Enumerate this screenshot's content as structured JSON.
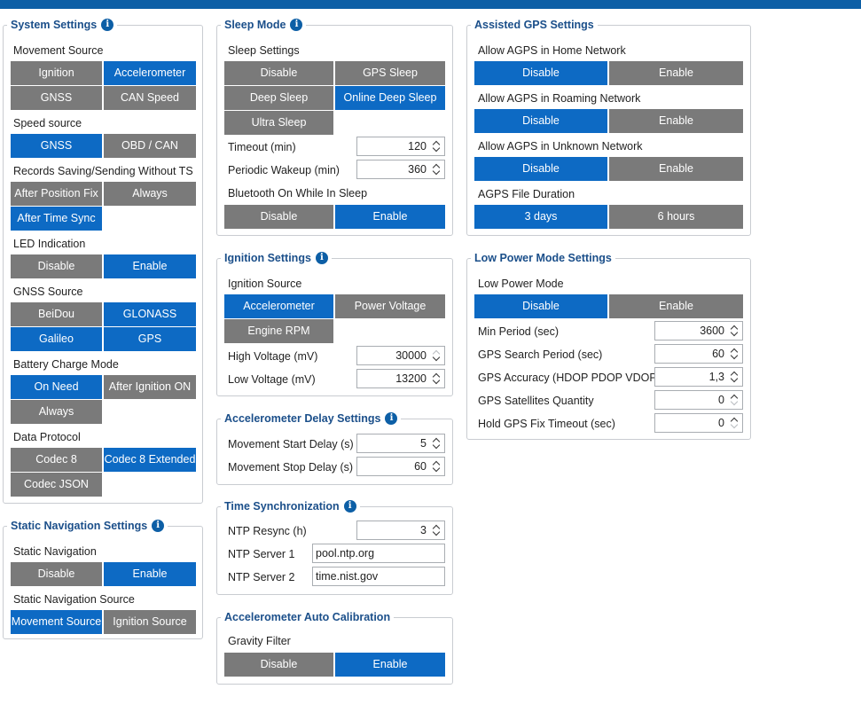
{
  "system": {
    "title": "System Settings",
    "movement_source": {
      "label": "Movement Source",
      "options": [
        "Ignition",
        "Accelerometer",
        "GNSS",
        "CAN Speed"
      ]
    },
    "speed_source": {
      "label": "Speed source",
      "options": [
        "GNSS",
        "OBD / CAN"
      ]
    },
    "records_saving": {
      "label": "Records Saving/Sending Without TS",
      "options": [
        "After Position Fix",
        "Always",
        "After Time Sync"
      ]
    },
    "led": {
      "label": "LED Indication",
      "options": [
        "Disable",
        "Enable"
      ]
    },
    "gnss_source": {
      "label": "GNSS Source",
      "options": [
        "BeiDou",
        "GLONASS",
        "Galileo",
        "GPS"
      ]
    },
    "battery": {
      "label": "Battery Charge Mode",
      "options": [
        "On Need",
        "After Ignition ON",
        "Always"
      ]
    },
    "protocol": {
      "label": "Data Protocol",
      "options": [
        "Codec 8",
        "Codec 8 Extended",
        "Codec JSON"
      ]
    }
  },
  "static_nav": {
    "title": "Static Navigation Settings",
    "static_navigation": {
      "label": "Static Navigation",
      "options": [
        "Disable",
        "Enable"
      ]
    },
    "source": {
      "label": "Static Navigation Source",
      "options": [
        "Movement Source",
        "Ignition Source"
      ]
    }
  },
  "sleep": {
    "title": "Sleep Mode",
    "settings": {
      "label": "Sleep Settings",
      "options": [
        "Disable",
        "GPS Sleep",
        "Deep Sleep",
        "Online Deep Sleep",
        "Ultra Sleep"
      ]
    },
    "timeout": {
      "label": "Timeout   (min)",
      "value": "120"
    },
    "wakeup": {
      "label": "Periodic Wakeup   (min)",
      "value": "360"
    },
    "bluetooth": {
      "label": "Bluetooth On While In Sleep",
      "options": [
        "Disable",
        "Enable"
      ]
    }
  },
  "ignition": {
    "title": "Ignition Settings",
    "source": {
      "label": "Ignition Source",
      "options": [
        "Accelerometer",
        "Power Voltage",
        "Engine RPM"
      ]
    },
    "high": {
      "label": "High Voltage   (mV)",
      "value": "30000"
    },
    "low": {
      "label": "Low Voltage   (mV)",
      "value": "13200"
    }
  },
  "accel_delay": {
    "title": "Accelerometer Delay Settings",
    "start": {
      "label": "Movement Start Delay   (s)",
      "value": "5"
    },
    "stop": {
      "label": "Movement Stop Delay   (s)",
      "value": "60"
    }
  },
  "time_sync": {
    "title": "Time Synchronization",
    "resync": {
      "label": "NTP Resync   (h)",
      "value": "3"
    },
    "server1": {
      "label": "NTP Server 1",
      "value": "pool.ntp.org"
    },
    "server2": {
      "label": "NTP Server 2",
      "value": "time.nist.gov"
    }
  },
  "accel_cal": {
    "title": "Accelerometer Auto Calibration",
    "gravity": {
      "label": "Gravity Filter",
      "options": [
        "Disable",
        "Enable"
      ]
    }
  },
  "agps": {
    "title": "Assisted GPS Settings",
    "home": {
      "label": "Allow AGPS in Home Network",
      "options": [
        "Disable",
        "Enable"
      ]
    },
    "roaming": {
      "label": "Allow AGPS in Roaming Network",
      "options": [
        "Disable",
        "Enable"
      ]
    },
    "unknown": {
      "label": "Allow AGPS in Unknown Network",
      "options": [
        "Disable",
        "Enable"
      ]
    },
    "duration": {
      "label": "AGPS File Duration",
      "options": [
        "3 days",
        "6 hours"
      ]
    }
  },
  "lowpower": {
    "title": "Low Power Mode Settings",
    "mode": {
      "label": "Low Power Mode",
      "options": [
        "Disable",
        "Enable"
      ]
    },
    "min_period": {
      "label": "Min Period   (sec)",
      "value": "3600"
    },
    "search_period": {
      "label": "GPS Search Period   (sec)",
      "value": "60"
    },
    "accuracy": {
      "label": "GPS Accuracy (HDOP PDOP VDOP)",
      "value": "1,3"
    },
    "satellites": {
      "label": "GPS Satellites Quantity",
      "value": "0"
    },
    "fix_timeout": {
      "label": "Hold GPS Fix Timeout   (sec)",
      "value": "0"
    }
  },
  "colors": {
    "accent": "#0d6ac4",
    "inactive": "#7a7a7a",
    "title": "#1b4f8a",
    "topbar": "#0d5fa6"
  },
  "icons": {
    "info": "info-icon",
    "spinner": "spinner-arrows-icon"
  }
}
